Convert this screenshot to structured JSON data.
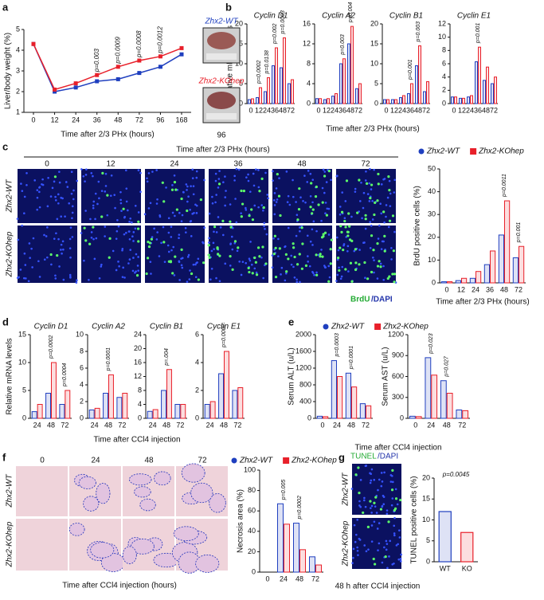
{
  "panel_letters": [
    "a",
    "b",
    "c",
    "d",
    "e",
    "f",
    "g"
  ],
  "panel_a": {
    "photo_time": "96"
  },
  "panel_b": {
    "xlabel": "Time after 2/3 PHx (hours)"
  },
  "panel_c": {
    "header": "Time after 2/3 PHx (hours)",
    "columns": [
      "0",
      "12",
      "24",
      "36",
      "48",
      "72"
    ],
    "rows": [
      "Zhx2-WT",
      "Zhx2-KOhep"
    ],
    "stain": [
      "BrdU",
      "/DAPI"
    ]
  },
  "panel_d": {
    "xlabel": "Time after CCl4 injection"
  },
  "panel_e": {
    "xlabel": "Time after CCl4 injection"
  },
  "panel_f": {
    "columns": [
      "0",
      "24",
      "48",
      "72"
    ],
    "rows": [
      "Zhx2-WT",
      "Zhx2-KOhep"
    ],
    "xlabel": "Time after CCl4 injection (hours)"
  },
  "panel_g": {
    "stain": [
      "TUNEL",
      "/DAPI"
    ],
    "rows": [
      "Zhx2-WT",
      "Zhx2-KOhep"
    ],
    "xlabel": "48 h after CCl4 injection"
  },
  "chart_data": [
    {
      "type": "line",
      "categories": [
        "0",
        "12",
        "24",
        "36",
        "48",
        "72",
        "96",
        "168"
      ],
      "series": [
        {
          "name": "Zhx2-WT",
          "color": "#1f3fbf",
          "values": [
            4.3,
            2.0,
            2.2,
            2.5,
            2.6,
            2.9,
            3.2,
            3.8
          ]
        },
        {
          "name": "Zhx2-KOhep",
          "color": "#e8202a",
          "values": [
            4.3,
            2.1,
            2.4,
            2.8,
            3.2,
            3.5,
            3.7,
            4.1
          ]
        }
      ],
      "ylim": [
        1,
        5
      ],
      "yticks": [
        1,
        2,
        3,
        4,
        5
      ],
      "ylabel": "Liver/body weight (%)",
      "xlabel": "Time after 2/3 PHx (hours)",
      "p_values": [
        null,
        null,
        null,
        "p=0.003",
        "p=0.0009",
        "p=0.0008",
        "p=0.0012",
        null
      ]
    },
    {
      "type": "bar",
      "title": "Cyclin D1",
      "categories": [
        "0",
        "12",
        "24",
        "36",
        "48",
        "72"
      ],
      "series": [
        {
          "color": "#1f3fbf",
          "values": [
            1,
            1.5,
            3,
            9.5,
            9,
            5
          ]
        },
        {
          "color": "#e8202a",
          "values": [
            1.2,
            4,
            6.5,
            14,
            16.5,
            6
          ]
        }
      ],
      "ylim": [
        0,
        20
      ],
      "yticks": [
        0,
        5,
        10,
        15,
        20
      ],
      "ylabel": "Relative mRNA levels",
      "p_values": [
        null,
        "p=0.0002",
        "p=0.0138",
        "p=0.002",
        "p=0.0003",
        null
      ]
    },
    {
      "type": "bar",
      "title": "Cyclin A2",
      "categories": [
        "0",
        "12",
        "24",
        "36",
        "48",
        "72"
      ],
      "series": [
        {
          "color": "#1f3fbf",
          "values": [
            1,
            0.8,
            1.5,
            8,
            12,
            3
          ]
        },
        {
          "color": "#e8202a",
          "values": [
            1,
            1,
            2,
            9,
            15.5,
            4
          ]
        }
      ],
      "ylim": [
        0,
        16
      ],
      "yticks": [
        0,
        4,
        8,
        12,
        16
      ],
      "p_values": [
        null,
        null,
        null,
        "p=0.003",
        "p=0.004",
        null
      ]
    },
    {
      "type": "bar",
      "title": "Cyclin B1",
      "categories": [
        "0",
        "12",
        "24",
        "36",
        "48",
        "72"
      ],
      "series": [
        {
          "color": "#1f3fbf",
          "values": [
            1,
            1,
            1.5,
            2.5,
            9.5,
            3
          ]
        },
        {
          "color": "#e8202a",
          "values": [
            1,
            1,
            2,
            5,
            14.5,
            5.5
          ]
        }
      ],
      "ylim": [
        0,
        20
      ],
      "yticks": [
        0,
        5,
        10,
        15,
        20
      ],
      "p_values": [
        null,
        null,
        null,
        "p=0.001",
        "p=0.003",
        null
      ]
    },
    {
      "type": "bar",
      "title": "Cyclin E1",
      "categories": [
        "0",
        "12",
        "24",
        "36",
        "48",
        "72"
      ],
      "series": [
        {
          "color": "#1f3fbf",
          "values": [
            1,
            0.8,
            1,
            6.3,
            3.5,
            3
          ]
        },
        {
          "color": "#e8202a",
          "values": [
            1,
            0.8,
            1.2,
            8.5,
            5.5,
            4
          ]
        }
      ],
      "ylim": [
        0,
        12
      ],
      "yticks": [
        0,
        2,
        4,
        6,
        8,
        10,
        12
      ],
      "p_values": [
        null,
        null,
        null,
        "p=0.001",
        null,
        null
      ]
    },
    {
      "type": "bar",
      "categories": [
        "0",
        "12",
        "24",
        "36",
        "48",
        "72"
      ],
      "series": [
        {
          "name": "Zhx2-WT",
          "color": "#1f3fbf",
          "values": [
            0.5,
            1,
            2,
            8,
            21,
            11
          ]
        },
        {
          "name": "Zhx2-KOhep",
          "color": "#e8202a",
          "values": [
            0.5,
            2,
            5,
            14,
            36,
            16
          ]
        }
      ],
      "ylim": [
        0,
        50
      ],
      "yticks": [
        0,
        10,
        20,
        30,
        40,
        50
      ],
      "ylabel": "BrdU positive cells (%)",
      "xlabel": "Time after 2/3 PHx (hours)",
      "p_values": [
        null,
        null,
        null,
        null,
        "p=0.0011",
        "p=0.001"
      ]
    },
    {
      "type": "bar",
      "title": "Cyclin D1",
      "categories": [
        "24",
        "48",
        "72"
      ],
      "series": [
        {
          "color": "#1f3fbf",
          "values": [
            1.2,
            4.5,
            2.5
          ]
        },
        {
          "color": "#e8202a",
          "values": [
            2.5,
            10,
            5
          ]
        }
      ],
      "ylim": [
        0,
        15
      ],
      "yticks": [
        0,
        5,
        10,
        15
      ],
      "ylabel": "Relative mRNA levels",
      "p_values": [
        null,
        "p=0.0002",
        "p=0.0004"
      ]
    },
    {
      "type": "bar",
      "title": "Cyclin A2",
      "categories": [
        "24",
        "48",
        "72"
      ],
      "series": [
        {
          "color": "#1f3fbf",
          "values": [
            1,
            3,
            2.5
          ]
        },
        {
          "color": "#e8202a",
          "values": [
            1.2,
            5.2,
            3
          ]
        }
      ],
      "ylim": [
        0,
        10
      ],
      "yticks": [
        0,
        2,
        4,
        6,
        8,
        10
      ],
      "p_values": [
        null,
        "p=0.0001",
        null
      ]
    },
    {
      "type": "bar",
      "title": "Cyclin B1",
      "categories": [
        "24",
        "48",
        "72"
      ],
      "series": [
        {
          "color": "#1f3fbf",
          "values": [
            2,
            8,
            4
          ]
        },
        {
          "color": "#e8202a",
          "values": [
            2.5,
            14,
            4
          ]
        }
      ],
      "ylim": [
        0,
        24
      ],
      "yticks": [
        0,
        4,
        8,
        12,
        16,
        20,
        24
      ],
      "p_values": [
        null,
        "p=.004",
        null
      ]
    },
    {
      "type": "bar",
      "title": "Cyclin E1",
      "categories": [
        "24",
        "48",
        "72"
      ],
      "series": [
        {
          "color": "#1f3fbf",
          "values": [
            1,
            3.2,
            2
          ]
        },
        {
          "color": "#e8202a",
          "values": [
            1.2,
            4.8,
            2.2
          ]
        }
      ],
      "ylim": [
        0,
        6
      ],
      "yticks": [
        0,
        2,
        4,
        6
      ],
      "p_values": [
        null,
        "p=0.0002",
        null
      ]
    },
    {
      "type": "bar",
      "categories": [
        "0",
        "24",
        "48",
        "72"
      ],
      "series": [
        {
          "name": "Zhx2-WT",
          "color": "#1f3fbf",
          "values": [
            50,
            1380,
            1080,
            350
          ]
        },
        {
          "name": "Zhx2-KOhep",
          "color": "#e8202a",
          "values": [
            40,
            1000,
            750,
            300
          ]
        }
      ],
      "ylim": [
        0,
        2000
      ],
      "yticks": [
        0,
        400,
        800,
        1200,
        1600,
        2000
      ],
      "ylabel": "Serum ALT (u/L)",
      "p_values": [
        null,
        "p=0.0003",
        "p=0.0001",
        null
      ]
    },
    {
      "type": "bar",
      "categories": [
        "0",
        "24",
        "48",
        "72"
      ],
      "series": [
        {
          "color": "#1f3fbf",
          "values": [
            30,
            870,
            540,
            120
          ]
        },
        {
          "color": "#e8202a",
          "values": [
            25,
            620,
            360,
            110
          ]
        }
      ],
      "ylim": [
        0,
        1200
      ],
      "yticks": [
        0,
        300,
        600,
        900,
        1200
      ],
      "ylabel": "Serum AST (u/L)",
      "p_values": [
        null,
        "p=0.023",
        "p=0.027",
        null
      ]
    },
    {
      "type": "bar",
      "categories": [
        "0",
        "24",
        "48",
        "72"
      ],
      "series": [
        {
          "name": "Zhx2-WT",
          "color": "#1f3fbf",
          "values": [
            0,
            67,
            48,
            15
          ]
        },
        {
          "name": "Zhx2-KOhep",
          "color": "#e8202a",
          "values": [
            0,
            47,
            22,
            7
          ]
        }
      ],
      "ylim": [
        0,
        100
      ],
      "yticks": [
        0,
        20,
        40,
        60,
        80,
        100
      ],
      "ylabel": "Necrosis area (%)",
      "p_values": [
        null,
        "p=0.005",
        "p=0.0002",
        null
      ]
    },
    {
      "type": "bar",
      "categories": [
        "WT",
        "KO"
      ],
      "values": [
        12,
        7
      ],
      "colors": [
        "#1f3fbf",
        "#e8202a"
      ],
      "ylim": [
        0,
        20
      ],
      "yticks": [
        0,
        5,
        10,
        15,
        20
      ],
      "ylabel": "TUNEL positive cells (%)",
      "p_values": [
        "p=0.0045",
        null
      ]
    }
  ]
}
